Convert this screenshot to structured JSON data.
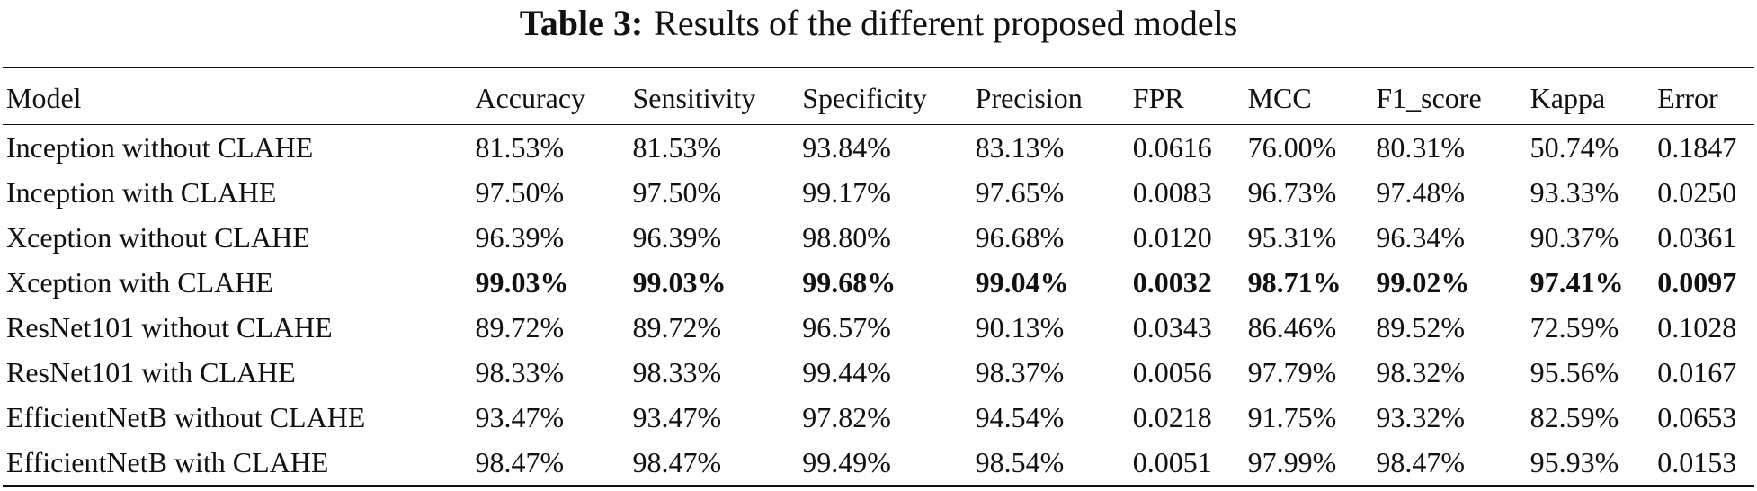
{
  "caption": {
    "label": "Table 3:",
    "text": "Results of the different proposed models"
  },
  "table": {
    "columns": [
      "Model",
      "Accuracy",
      "Sensitivity",
      "Specificity",
      "Precision",
      "FPR",
      "MCC",
      "F1_score",
      "Kappa",
      "Error"
    ],
    "rows": [
      {
        "model": "Inception without CLAHE",
        "accuracy": "81.53%",
        "sensitivity": "81.53%",
        "specificity": "93.84%",
        "precision": "83.13%",
        "fpr": "0.0616",
        "mcc": "76.00%",
        "f1_score": "80.31%",
        "kappa": "50.74%",
        "error": "0.1847",
        "bold": false
      },
      {
        "model": "Inception with CLAHE",
        "accuracy": "97.50%",
        "sensitivity": "97.50%",
        "specificity": "99.17%",
        "precision": "97.65%",
        "fpr": "0.0083",
        "mcc": "96.73%",
        "f1_score": "97.48%",
        "kappa": "93.33%",
        "error": "0.0250",
        "bold": false
      },
      {
        "model": "Xception without CLAHE",
        "accuracy": "96.39%",
        "sensitivity": "96.39%",
        "specificity": "98.80%",
        "precision": "96.68%",
        "fpr": "0.0120",
        "mcc": "95.31%",
        "f1_score": "96.34%",
        "kappa": "90.37%",
        "error": "0.0361",
        "bold": false
      },
      {
        "model": "Xception with CLAHE",
        "accuracy": "99.03%",
        "sensitivity": "99.03%",
        "specificity": "99.68%",
        "precision": "99.04%",
        "fpr": "0.0032",
        "mcc": "98.71%",
        "f1_score": "99.02%",
        "kappa": "97.41%",
        "error": "0.0097",
        "bold": true
      },
      {
        "model": "ResNet101 without CLAHE",
        "accuracy": "89.72%",
        "sensitivity": "89.72%",
        "specificity": "96.57%",
        "precision": "90.13%",
        "fpr": "0.0343",
        "mcc": "86.46%",
        "f1_score": "89.52%",
        "kappa": "72.59%",
        "error": "0.1028",
        "bold": false
      },
      {
        "model": "ResNet101 with CLAHE",
        "accuracy": "98.33%",
        "sensitivity": "98.33%",
        "specificity": "99.44%",
        "precision": "98.37%",
        "fpr": "0.0056",
        "mcc": "97.79%",
        "f1_score": "98.32%",
        "kappa": "95.56%",
        "error": "0.0167",
        "bold": false
      },
      {
        "model": "EfficientNetB without CLAHE",
        "accuracy": "93.47%",
        "sensitivity": "93.47%",
        "specificity": "97.82%",
        "precision": "94.54%",
        "fpr": "0.0218",
        "mcc": "91.75%",
        "f1_score": "93.32%",
        "kappa": "82.59%",
        "error": "0.0653",
        "bold": false
      },
      {
        "model": "EfficientNetB with CLAHE",
        "accuracy": "98.47%",
        "sensitivity": "98.47%",
        "specificity": "99.49%",
        "precision": "98.54%",
        "fpr": "0.0051",
        "mcc": "97.99%",
        "f1_score": "98.47%",
        "kappa": "95.93%",
        "error": "0.0153",
        "bold": false
      }
    ]
  }
}
